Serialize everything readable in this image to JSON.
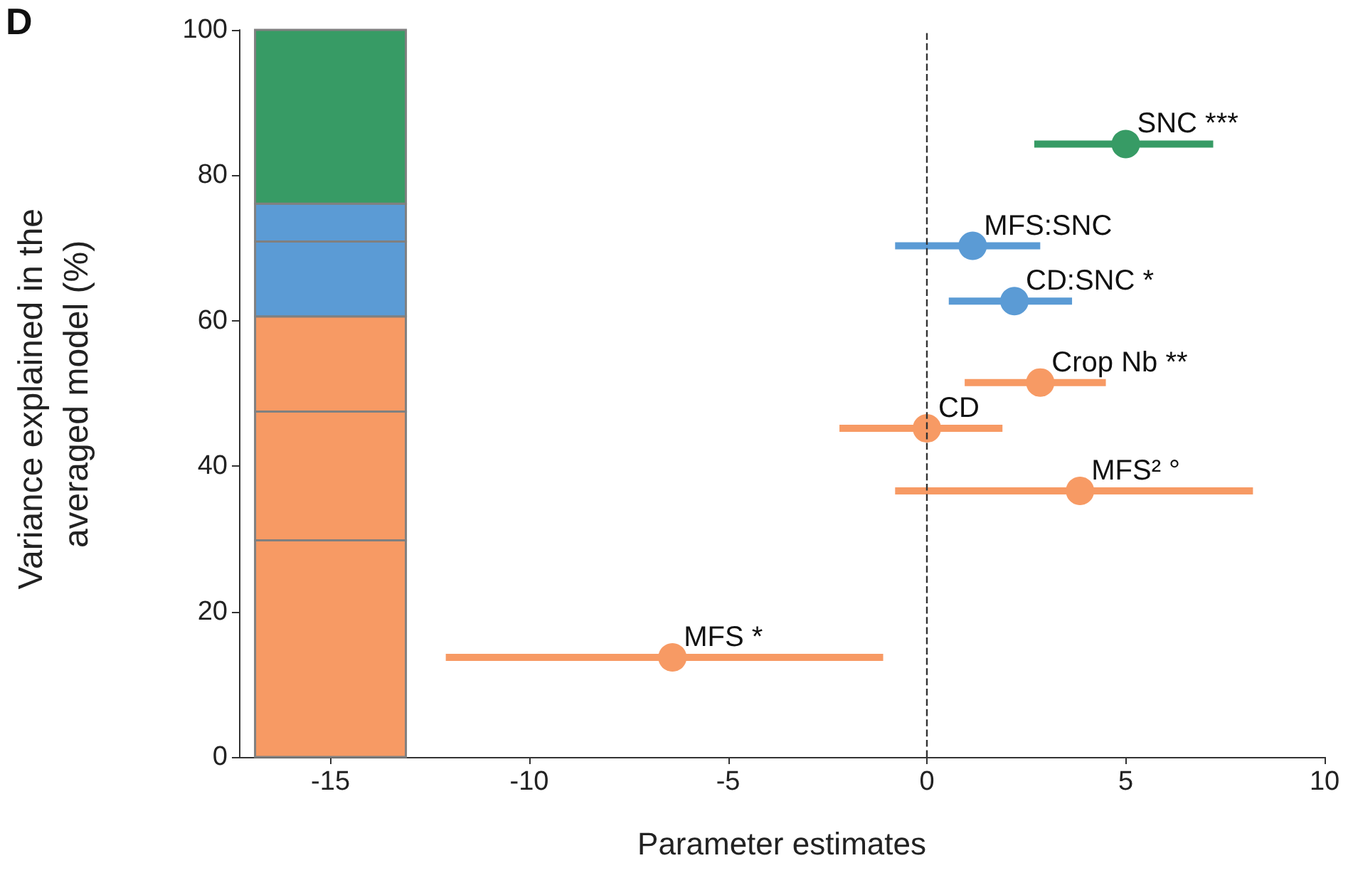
{
  "chart_data": {
    "type": "scatter",
    "xlabel": "Parameter estimates",
    "ylabel": "Variance explained in the averaged model (%)",
    "annotations": [
      "D",
      {
        "text": "SNC ***",
        "x": 5.0,
        "y": 84.3
      },
      {
        "text": "MFS:SNC",
        "x": 1.15,
        "y": 70.3
      },
      {
        "text": "CD:SNC *",
        "x": 2.2,
        "y": 62.7
      },
      {
        "text": "Crop Nb **",
        "x": 2.85,
        "y": 51.5
      },
      {
        "text": "CD",
        "x": 0,
        "y": 45.2
      },
      {
        "text": "MFS² °",
        "x": 3.85,
        "y": 36.6
      },
      {
        "text": "MFS *",
        "x": -6.4,
        "y": 13.7
      }
    ],
    "stacked": true,
    "series": [
      {
        "type": "bar",
        "x": [
          -15
        ],
        "values": [
          29.8
        ],
        "color": "#f79a64"
      },
      {
        "type": "bar",
        "x": [
          -15
        ],
        "values": [
          17.7
        ],
        "color": "#f79a64"
      },
      {
        "type": "bar",
        "x": [
          -15
        ],
        "values": [
          13.1
        ],
        "color": "#f79a64"
      },
      {
        "type": "bar",
        "x": [
          -15
        ],
        "values": [
          10.3
        ],
        "color": "#5b9bd5"
      },
      {
        "type": "bar",
        "x": [
          -15
        ],
        "values": [
          5.2
        ],
        "color": "#5b9bd5"
      },
      {
        "type": "bar",
        "x": [
          -15
        ],
        "values": [
          23.9
        ],
        "color": "#379b65"
      },
      {
        "x": [
          -6.4,
          0,
          3.85,
          2.85
        ],
        "values": [
          13.7,
          45.2,
          36.6,
          51.5
        ],
        "xerrors": [
          [
            -12.1,
            -1.1
          ],
          [
            -2.2,
            1.9
          ],
          [
            -0.8,
            8.2
          ],
          [
            0.95,
            4.5
          ]
        ],
        "color": "#f79a64"
      },
      {
        "x": [
          2.2,
          1.15
        ],
        "values": [
          62.7,
          70.3
        ],
        "xerrors": [
          [
            0.55,
            3.65
          ],
          [
            -0.8,
            2.85
          ]
        ],
        "color": "#5b9bd5"
      },
      {
        "x": [
          5.0
        ],
        "values": [
          84.3
        ],
        "xerrors": [
          [
            2.7,
            7.2
          ]
        ],
        "color": "#379b65"
      }
    ],
    "ref_lines": [
      {
        "axis": "x",
        "value": 0,
        "color": "#333333",
        "line_style": "dashed"
      }
    ],
    "xlim": [
      -17.3,
      10
    ],
    "xticks": [
      -15,
      -10,
      -5,
      0,
      5,
      10
    ],
    "ylim": [
      0,
      100
    ],
    "yticks": [
      0,
      20,
      40,
      60,
      80,
      100
    ],
    "grid": false,
    "marker": "circle"
  }
}
